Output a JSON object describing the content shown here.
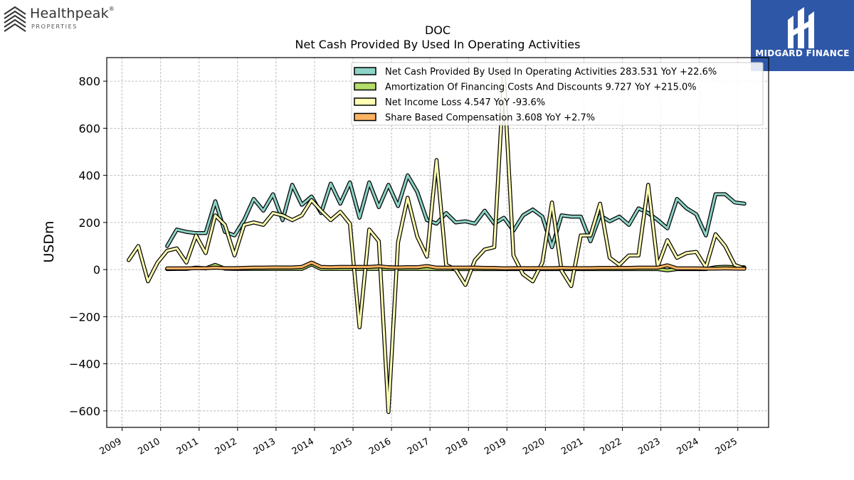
{
  "branding": {
    "left_logo_name": "Healthpeak",
    "left_logo_reg": "®",
    "left_logo_sub": "PROPERTIES",
    "right_logo_name": "MIDGARD FINANCE",
    "right_logo_bg": "#2f57a8"
  },
  "chart_data": {
    "type": "line",
    "title": "DOC",
    "subtitle": "Net Cash Provided By Used In Operating Activities",
    "ylabel": "USDm",
    "xlabel": "",
    "ylim": [
      -670,
      900
    ],
    "xlim": [
      2008.6,
      2025.8
    ],
    "yticks": [
      -600,
      -400,
      -200,
      0,
      200,
      400,
      600,
      800
    ],
    "yticks_labels": [
      "−600",
      "−400",
      "−200",
      "0",
      "200",
      "400",
      "600",
      "800"
    ],
    "xticks": [
      2009,
      2010,
      2011,
      2012,
      2013,
      2014,
      2015,
      2016,
      2017,
      2018,
      2019,
      2020,
      2021,
      2022,
      2023,
      2024,
      2025
    ],
    "xticks_labels": [
      "2009",
      "2010",
      "2011",
      "2012",
      "2013",
      "2014",
      "2015",
      "2016",
      "2017",
      "2018",
      "2019",
      "2020",
      "2021",
      "2022",
      "2023",
      "2024",
      "2025"
    ],
    "grid": true,
    "legend_position": "top-right",
    "series": [
      {
        "name": "Net Cash Provided By Used In Operating Activities",
        "legend_label": "Net Cash Provided By Used In Operating Activities  283.531 YoY +22.6%",
        "color": "#8dd3c7",
        "x": [
          2010.17,
          2010.42,
          2010.67,
          2010.92,
          2011.17,
          2011.42,
          2011.67,
          2011.92,
          2012.17,
          2012.42,
          2012.67,
          2012.92,
          2013.17,
          2013.42,
          2013.67,
          2013.92,
          2014.17,
          2014.42,
          2014.67,
          2014.92,
          2015.17,
          2015.42,
          2015.67,
          2015.92,
          2016.17,
          2016.42,
          2016.67,
          2016.92,
          2017.17,
          2017.42,
          2017.67,
          2017.92,
          2018.17,
          2018.42,
          2018.67,
          2018.92,
          2019.17,
          2019.42,
          2019.67,
          2019.92,
          2020.17,
          2020.42,
          2020.67,
          2020.92,
          2021.17,
          2021.42,
          2021.67,
          2021.92,
          2022.17,
          2022.42,
          2022.67,
          2022.92,
          2023.17,
          2023.42,
          2023.67,
          2023.92,
          2024.17,
          2024.42,
          2024.67,
          2024.92,
          2025.17
        ],
        "y": [
          100,
          170,
          160,
          155,
          155,
          290,
          160,
          145,
          210,
          300,
          250,
          320,
          210,
          360,
          275,
          310,
          240,
          365,
          280,
          370,
          220,
          370,
          265,
          360,
          270,
          400,
          330,
          210,
          195,
          240,
          200,
          205,
          195,
          250,
          195,
          220,
          165,
          230,
          255,
          225,
          95,
          230,
          225,
          225,
          120,
          230,
          205,
          225,
          190,
          260,
          240,
          210,
          175,
          300,
          260,
          235,
          145,
          320,
          320,
          285,
          280
        ]
      },
      {
        "name": "Amortization Of Financing Costs And Discounts",
        "legend_label": "Amortization Of Financing Costs And Discounts  9.727 YoY +215.0%",
        "color": "#b3de69",
        "x": [
          2010.17,
          2010.42,
          2010.67,
          2010.92,
          2011.17,
          2011.42,
          2011.67,
          2011.92,
          2012.17,
          2012.42,
          2012.67,
          2012.92,
          2013.17,
          2013.42,
          2013.67,
          2013.92,
          2014.17,
          2014.42,
          2014.67,
          2014.92,
          2015.17,
          2015.42,
          2015.67,
          2015.92,
          2016.17,
          2016.42,
          2016.67,
          2016.92,
          2017.17,
          2017.42,
          2017.67,
          2017.92,
          2018.17,
          2018.42,
          2018.67,
          2018.92,
          2019.17,
          2019.42,
          2019.67,
          2019.92,
          2020.17,
          2020.42,
          2020.67,
          2020.92,
          2021.17,
          2021.42,
          2021.67,
          2021.92,
          2022.17,
          2022.42,
          2022.67,
          2022.92,
          2023.17,
          2023.42,
          2023.67,
          2023.92,
          2024.17,
          2024.42,
          2024.67,
          2024.92,
          2025.17
        ],
        "y": [
          2,
          3,
          3,
          8,
          5,
          20,
          4,
          3,
          3,
          3,
          3,
          3,
          3,
          3,
          3,
          22,
          3,
          3,
          3,
          3,
          3,
          3,
          3,
          3,
          3,
          3,
          3,
          3,
          2,
          2,
          2,
          2,
          2,
          2,
          2,
          2,
          2,
          2,
          2,
          2,
          2,
          2,
          2,
          2,
          2,
          2,
          2,
          2,
          2,
          2,
          2,
          2,
          -3,
          2,
          2,
          2,
          2,
          10,
          12,
          10,
          9.7
        ]
      },
      {
        "name": "Net Income Loss",
        "legend_label": "Net Income Loss  4.547 YoY -93.6%",
        "color": "#ffffb3",
        "x": [
          2009.17,
          2009.42,
          2009.67,
          2009.92,
          2010.17,
          2010.42,
          2010.67,
          2010.92,
          2011.17,
          2011.42,
          2011.67,
          2011.92,
          2012.17,
          2012.42,
          2012.67,
          2012.92,
          2013.17,
          2013.42,
          2013.67,
          2013.92,
          2014.17,
          2014.42,
          2014.67,
          2014.92,
          2015.17,
          2015.42,
          2015.67,
          2015.92,
          2016.17,
          2016.42,
          2016.67,
          2016.92,
          2017.17,
          2017.42,
          2017.67,
          2017.92,
          2018.17,
          2018.42,
          2018.67,
          2018.92,
          2019.17,
          2019.42,
          2019.67,
          2019.92,
          2020.17,
          2020.42,
          2020.67,
          2020.92,
          2021.17,
          2021.42,
          2021.67,
          2021.92,
          2022.17,
          2022.42,
          2022.67,
          2022.92,
          2023.17,
          2023.42,
          2023.67,
          2023.92,
          2024.17,
          2024.42,
          2024.67,
          2024.92,
          2025.17
        ],
        "y": [
          40,
          100,
          -50,
          30,
          80,
          90,
          30,
          145,
          70,
          230,
          190,
          60,
          190,
          200,
          190,
          240,
          230,
          210,
          230,
          295,
          250,
          210,
          245,
          195,
          -245,
          170,
          120,
          -605,
          115,
          305,
          140,
          55,
          465,
          20,
          0,
          -65,
          40,
          85,
          95,
          820,
          60,
          -20,
          -50,
          30,
          285,
          -5,
          -70,
          145,
          145,
          280,
          50,
          20,
          60,
          60,
          360,
          15,
          125,
          50,
          70,
          75,
          10,
          150,
          100,
          20,
          4.5
        ]
      },
      {
        "name": "Share Based Compensation",
        "legend_label": "Share Based Compensation  3.608 YoY +2.7%",
        "color": "#fdb462",
        "x": [
          2010.17,
          2010.42,
          2010.67,
          2010.92,
          2011.17,
          2011.42,
          2011.67,
          2011.92,
          2012.17,
          2012.42,
          2012.67,
          2012.92,
          2013.17,
          2013.42,
          2013.67,
          2013.92,
          2014.17,
          2014.42,
          2014.67,
          2014.92,
          2015.17,
          2015.42,
          2015.67,
          2015.92,
          2016.17,
          2016.42,
          2016.67,
          2016.92,
          2017.17,
          2017.42,
          2017.67,
          2017.92,
          2018.17,
          2018.42,
          2018.67,
          2018.92,
          2019.17,
          2019.42,
          2019.67,
          2019.92,
          2020.17,
          2020.42,
          2020.67,
          2020.92,
          2021.17,
          2021.42,
          2021.67,
          2021.92,
          2022.17,
          2022.42,
          2022.67,
          2022.92,
          2023.17,
          2023.42,
          2023.67,
          2023.92,
          2024.17,
          2024.42,
          2024.67,
          2024.92,
          2025.17
        ],
        "y": [
          5,
          5,
          5,
          6,
          6,
          8,
          6,
          6,
          7,
          8,
          8,
          9,
          9,
          9,
          11,
          30,
          11,
          10,
          11,
          11,
          11,
          11,
          14,
          10,
          9,
          10,
          10,
          15,
          8,
          8,
          8,
          8,
          8,
          7,
          7,
          5,
          6,
          6,
          6,
          6,
          6,
          7,
          6,
          6,
          6,
          7,
          7,
          7,
          7,
          8,
          8,
          8,
          18,
          5,
          5,
          5,
          4,
          4,
          5,
          4,
          3.6
        ]
      }
    ]
  }
}
